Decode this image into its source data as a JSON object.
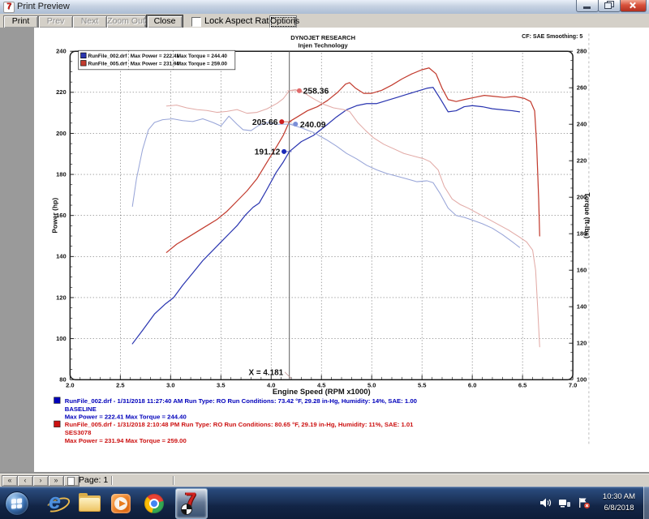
{
  "window": {
    "title": "Print Preview"
  },
  "toolbar": {
    "print": "Print",
    "prev": "Prev",
    "next": "Next",
    "zoom_out": "Zoom Out",
    "close": "Close",
    "lock_aspect_ratio": "Lock Aspect Ratio",
    "options": "Options"
  },
  "chart_data": {
    "type": "line",
    "title": "DYNOJET RESEARCH",
    "subtitle": "Injen Technology",
    "corner_note": "CF: SAE  Smoothing: 5",
    "xlabel": "Engine Speed (RPM x1000)",
    "ylabel_left": "Power (hp)",
    "ylabel_right": "Torque (ft-lbs)",
    "xlim": [
      2.0,
      7.0
    ],
    "ylim_left": [
      80,
      240
    ],
    "ylim_right": [
      100,
      280
    ],
    "xticks": [
      2.0,
      2.5,
      3.0,
      3.5,
      4.0,
      4.5,
      5.0,
      5.5,
      6.0,
      6.5,
      7.0
    ],
    "yticks_left": [
      240,
      220,
      200,
      180,
      160,
      140,
      120,
      100,
      80
    ],
    "yticks_right": [
      280,
      260,
      240,
      220,
      200,
      180,
      160,
      140,
      120,
      100
    ],
    "grid": true,
    "legend": {
      "rows": [
        {
          "name": "RunFile_002.drf",
          "max_power": "Max Power = 222.41",
          "max_torque": "Max Torque = 244.40",
          "color": "#2a35b0"
        },
        {
          "name": "RunFile_005.drf",
          "max_power": "Max Power = 231.94",
          "max_torque": "Max Torque = 259.00",
          "color": "#c23b2e"
        }
      ]
    },
    "cursor": {
      "x": 4.181,
      "label": "X = 4.181",
      "points": [
        {
          "series": "torque_005",
          "value": 258.36,
          "label": "258.36",
          "dot_color": "#e06a6a"
        },
        {
          "series": "power_005",
          "value": 205.66,
          "label": "205.66",
          "dot_color": "#cc1f1f"
        },
        {
          "series": "torque_002",
          "value": 240.09,
          "label": "240.09",
          "dot_color": "#7b8fd8"
        },
        {
          "series": "power_002",
          "value": 191.12,
          "label": "191.12",
          "dot_color": "#1b2ab8"
        }
      ]
    },
    "series": [
      {
        "id": "power_002",
        "name": "RunFile_002.drf Power",
        "axis": "left",
        "color": "#2a35b0",
        "width": 1.3,
        "points": [
          [
            2.62,
            97.5
          ],
          [
            2.72,
            104
          ],
          [
            2.84,
            112
          ],
          [
            2.95,
            117
          ],
          [
            3.03,
            120
          ],
          [
            3.12,
            126
          ],
          [
            3.22,
            132
          ],
          [
            3.32,
            138
          ],
          [
            3.4,
            142
          ],
          [
            3.5,
            147
          ],
          [
            3.58,
            151
          ],
          [
            3.66,
            155
          ],
          [
            3.74,
            160
          ],
          [
            3.82,
            164
          ],
          [
            3.88,
            166
          ],
          [
            3.95,
            172
          ],
          [
            4.05,
            181
          ],
          [
            4.12,
            186
          ],
          [
            4.181,
            191.1
          ],
          [
            4.3,
            196
          ],
          [
            4.42,
            199
          ],
          [
            4.55,
            204
          ],
          [
            4.65,
            208
          ],
          [
            4.75,
            211.5
          ],
          [
            4.85,
            213.5
          ],
          [
            4.95,
            214.5
          ],
          [
            5.05,
            214.5
          ],
          [
            5.15,
            216
          ],
          [
            5.25,
            217.5
          ],
          [
            5.35,
            219
          ],
          [
            5.45,
            220.5
          ],
          [
            5.55,
            222
          ],
          [
            5.61,
            222.4
          ],
          [
            5.68,
            217
          ],
          [
            5.76,
            210.5
          ],
          [
            5.84,
            211
          ],
          [
            5.92,
            213
          ],
          [
            6.0,
            213.5
          ],
          [
            6.1,
            213
          ],
          [
            6.2,
            212
          ],
          [
            6.3,
            211.5
          ],
          [
            6.4,
            211
          ],
          [
            6.47,
            210.5
          ]
        ]
      },
      {
        "id": "power_005",
        "name": "RunFile_005.drf Power",
        "axis": "left",
        "color": "#c23b2e",
        "width": 1.3,
        "points": [
          [
            2.96,
            142
          ],
          [
            3.06,
            146
          ],
          [
            3.16,
            149
          ],
          [
            3.26,
            152
          ],
          [
            3.36,
            155
          ],
          [
            3.46,
            158
          ],
          [
            3.56,
            162
          ],
          [
            3.66,
            167
          ],
          [
            3.76,
            172
          ],
          [
            3.86,
            178
          ],
          [
            3.96,
            186
          ],
          [
            4.06,
            194
          ],
          [
            4.12,
            199
          ],
          [
            4.181,
            205.7
          ],
          [
            4.26,
            208
          ],
          [
            4.36,
            211
          ],
          [
            4.46,
            213
          ],
          [
            4.56,
            216
          ],
          [
            4.66,
            220
          ],
          [
            4.74,
            224
          ],
          [
            4.78,
            224.7
          ],
          [
            4.84,
            222
          ],
          [
            4.92,
            219.5
          ],
          [
            5.0,
            219.5
          ],
          [
            5.1,
            221
          ],
          [
            5.2,
            223.5
          ],
          [
            5.3,
            226.5
          ],
          [
            5.4,
            229
          ],
          [
            5.5,
            231
          ],
          [
            5.57,
            231.9
          ],
          [
            5.64,
            229
          ],
          [
            5.7,
            222
          ],
          [
            5.76,
            216.5
          ],
          [
            5.84,
            215.5
          ],
          [
            5.92,
            216.5
          ],
          [
            6.02,
            217.5
          ],
          [
            6.12,
            218.5
          ],
          [
            6.22,
            218
          ],
          [
            6.32,
            217.5
          ],
          [
            6.42,
            218
          ],
          [
            6.52,
            217
          ],
          [
            6.58,
            215.5
          ],
          [
            6.62,
            211
          ],
          [
            6.64,
            195
          ],
          [
            6.66,
            168
          ],
          [
            6.67,
            150
          ]
        ]
      },
      {
        "id": "torque_002",
        "name": "RunFile_002.drf Torque",
        "axis": "right",
        "color": "#98a5d8",
        "width": 1.1,
        "points": [
          [
            2.62,
            195
          ],
          [
            2.66,
            210
          ],
          [
            2.72,
            226
          ],
          [
            2.78,
            237
          ],
          [
            2.84,
            241
          ],
          [
            2.92,
            242.5
          ],
          [
            3.02,
            243
          ],
          [
            3.12,
            242
          ],
          [
            3.22,
            241.5
          ],
          [
            3.32,
            243
          ],
          [
            3.42,
            241
          ],
          [
            3.5,
            239
          ],
          [
            3.58,
            244.4
          ],
          [
            3.66,
            240
          ],
          [
            3.72,
            237
          ],
          [
            3.8,
            236.5
          ],
          [
            3.88,
            239.5
          ],
          [
            3.96,
            241
          ],
          [
            4.06,
            240
          ],
          [
            4.181,
            240.1
          ],
          [
            4.3,
            238
          ],
          [
            4.42,
            235.5
          ],
          [
            4.55,
            231.5
          ],
          [
            4.65,
            228
          ],
          [
            4.75,
            224
          ],
          [
            4.85,
            221
          ],
          [
            4.95,
            217.5
          ],
          [
            5.05,
            215
          ],
          [
            5.15,
            213
          ],
          [
            5.25,
            211.5
          ],
          [
            5.35,
            210
          ],
          [
            5.45,
            208.5
          ],
          [
            5.55,
            209
          ],
          [
            5.61,
            208
          ],
          [
            5.68,
            202
          ],
          [
            5.76,
            194
          ],
          [
            5.84,
            190
          ],
          [
            5.92,
            189
          ],
          [
            6.0,
            187.5
          ],
          [
            6.1,
            185.5
          ],
          [
            6.2,
            183
          ],
          [
            6.3,
            179.5
          ],
          [
            6.4,
            175.5
          ],
          [
            6.47,
            172.5
          ]
        ]
      },
      {
        "id": "torque_005",
        "name": "RunFile_005.drf Torque",
        "axis": "right",
        "color": "#e2aaa6",
        "width": 1.1,
        "points": [
          [
            2.96,
            250
          ],
          [
            3.06,
            250.5
          ],
          [
            3.16,
            249
          ],
          [
            3.26,
            248
          ],
          [
            3.36,
            247.5
          ],
          [
            3.46,
            246.5
          ],
          [
            3.56,
            247
          ],
          [
            3.66,
            248
          ],
          [
            3.76,
            246
          ],
          [
            3.86,
            246.5
          ],
          [
            3.96,
            248.5
          ],
          [
            4.06,
            251.5
          ],
          [
            4.12,
            254
          ],
          [
            4.181,
            258.4
          ],
          [
            4.24,
            259
          ],
          [
            4.32,
            257.5
          ],
          [
            4.42,
            254
          ],
          [
            4.52,
            251
          ],
          [
            4.62,
            249
          ],
          [
            4.72,
            248
          ],
          [
            4.78,
            247
          ],
          [
            4.86,
            241
          ],
          [
            4.94,
            236.5
          ],
          [
            5.02,
            232.5
          ],
          [
            5.12,
            229
          ],
          [
            5.22,
            226.5
          ],
          [
            5.32,
            224
          ],
          [
            5.42,
            222.5
          ],
          [
            5.52,
            221
          ],
          [
            5.58,
            219.5
          ],
          [
            5.66,
            215
          ],
          [
            5.72,
            206
          ],
          [
            5.8,
            199
          ],
          [
            5.88,
            196
          ],
          [
            5.96,
            194
          ],
          [
            6.06,
            191
          ],
          [
            6.16,
            188
          ],
          [
            6.26,
            185
          ],
          [
            6.36,
            182
          ],
          [
            6.46,
            178.5
          ],
          [
            6.54,
            175.5
          ],
          [
            6.6,
            171
          ],
          [
            6.63,
            160
          ],
          [
            6.65,
            140
          ],
          [
            6.67,
            118
          ]
        ]
      }
    ],
    "runs": [
      {
        "color": "#0000bb",
        "line1": "RunFile_002.drf - 1/31/2018 11:27:40 AM  Run Type: RO  Run Conditions: 73.42 °F, 29.28 in-Hg,  Humidity:  14%, SAE: 1.00",
        "line2": "BASELINE",
        "line3": "Max Power = 222.41  Max Torque = 244.40"
      },
      {
        "color": "#cc1111",
        "line1": "RunFile_005.drf - 1/31/2018 2:10:48 PM  Run Type: RO  Run Conditions: 80.65 °F, 29.19 in-Hg,  Humidity:  11%, SAE: 1.01",
        "line2": "SES3078",
        "line3": "Max Power = 231.94  Max Torque = 259.00"
      }
    ]
  },
  "statusbar": {
    "buttons": [
      "«",
      "‹",
      "›",
      "»"
    ],
    "page_label": "Page: 1"
  },
  "taskbar": {
    "icons": [
      "start-orb-icon",
      "ie-icon",
      "explorer-folder-icon",
      "wmp-icon",
      "chrome-icon",
      "winpep7-icon"
    ],
    "tray_icons": [
      "volume-icon",
      "network-icon",
      "action-center-flag-icon"
    ],
    "clock": {
      "time": "10:30 AM",
      "date": "6/8/2018"
    }
  }
}
